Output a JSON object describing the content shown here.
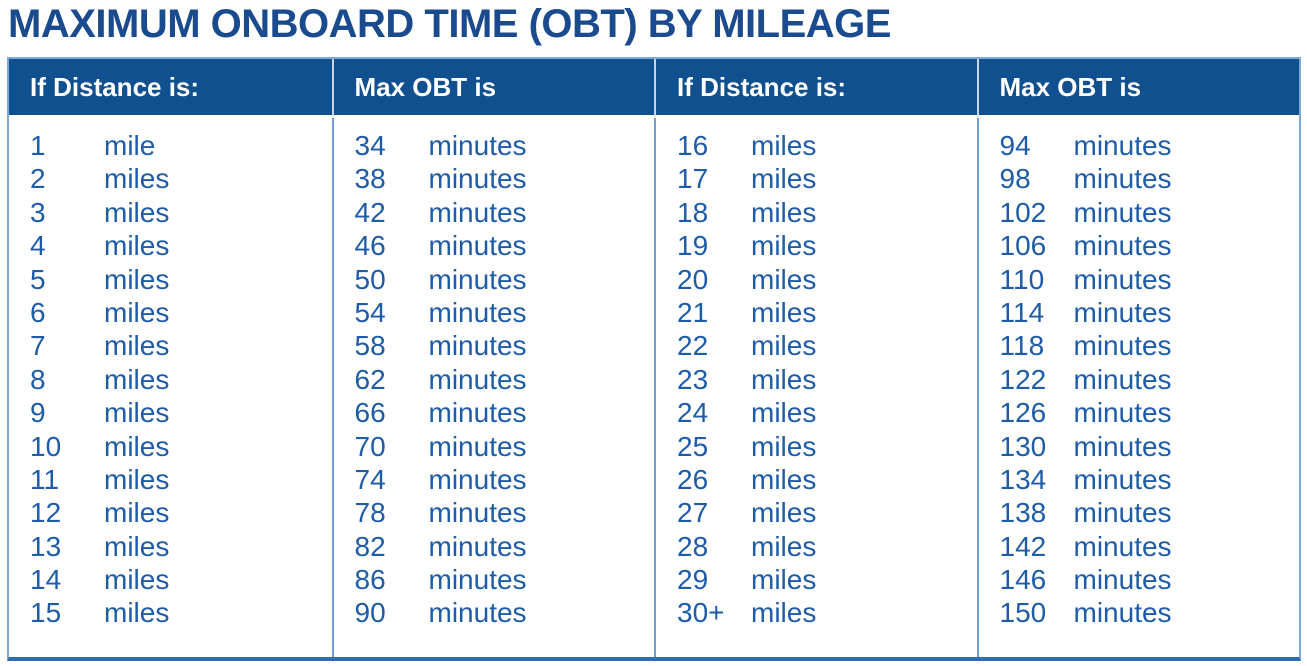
{
  "page": {
    "title": "MAXIMUM ONBOARD TIME (OBT) BY MILEAGE"
  },
  "colors": {
    "title_text": "#1a4b8e",
    "header_background": "#11508f",
    "header_text": "#ffffff",
    "body_text": "#1e5ca8",
    "grid_line_light": "#7fa8d4",
    "grid_line_bottom": "#2f6db2"
  },
  "table": {
    "columns": [
      {
        "header": "If Distance is:",
        "rows": [
          {
            "value": "1",
            "unit": "mile"
          },
          {
            "value": "2",
            "unit": "miles"
          },
          {
            "value": "3",
            "unit": "miles"
          },
          {
            "value": "4",
            "unit": "miles"
          },
          {
            "value": "5",
            "unit": "miles"
          },
          {
            "value": "6",
            "unit": "miles"
          },
          {
            "value": "7",
            "unit": "miles"
          },
          {
            "value": "8",
            "unit": "miles"
          },
          {
            "value": "9",
            "unit": "miles"
          },
          {
            "value": "10",
            "unit": "miles"
          },
          {
            "value": "11",
            "unit": "miles"
          },
          {
            "value": "12",
            "unit": "miles"
          },
          {
            "value": "13",
            "unit": "miles"
          },
          {
            "value": "14",
            "unit": "miles"
          },
          {
            "value": "15",
            "unit": "miles"
          }
        ]
      },
      {
        "header": "Max OBT is",
        "rows": [
          {
            "value": "34",
            "unit": "minutes"
          },
          {
            "value": "38",
            "unit": "minutes"
          },
          {
            "value": "42",
            "unit": "minutes"
          },
          {
            "value": "46",
            "unit": "minutes"
          },
          {
            "value": "50",
            "unit": "minutes"
          },
          {
            "value": "54",
            "unit": "minutes"
          },
          {
            "value": "58",
            "unit": "minutes"
          },
          {
            "value": "62",
            "unit": "minutes"
          },
          {
            "value": "66",
            "unit": "minutes"
          },
          {
            "value": "70",
            "unit": "minutes"
          },
          {
            "value": "74",
            "unit": "minutes"
          },
          {
            "value": "78",
            "unit": "minutes"
          },
          {
            "value": "82",
            "unit": "minutes"
          },
          {
            "value": "86",
            "unit": "minutes"
          },
          {
            "value": "90",
            "unit": "minutes"
          }
        ]
      },
      {
        "header": "If Distance is:",
        "rows": [
          {
            "value": "16",
            "unit": "miles"
          },
          {
            "value": "17",
            "unit": "miles"
          },
          {
            "value": "18",
            "unit": "miles"
          },
          {
            "value": "19",
            "unit": "miles"
          },
          {
            "value": "20",
            "unit": "miles"
          },
          {
            "value": "21",
            "unit": "miles"
          },
          {
            "value": "22",
            "unit": "miles"
          },
          {
            "value": "23",
            "unit": "miles"
          },
          {
            "value": "24",
            "unit": "miles"
          },
          {
            "value": "25",
            "unit": "miles"
          },
          {
            "value": "26",
            "unit": "miles"
          },
          {
            "value": "27",
            "unit": "miles"
          },
          {
            "value": "28",
            "unit": "miles"
          },
          {
            "value": "29",
            "unit": "miles"
          },
          {
            "value": "30+",
            "unit": "miles"
          }
        ]
      },
      {
        "header": "Max OBT is",
        "rows": [
          {
            "value": "94",
            "unit": "minutes"
          },
          {
            "value": "98",
            "unit": "minutes"
          },
          {
            "value": "102",
            "unit": "minutes"
          },
          {
            "value": "106",
            "unit": "minutes"
          },
          {
            "value": "110",
            "unit": "minutes"
          },
          {
            "value": "114",
            "unit": "minutes"
          },
          {
            "value": "118",
            "unit": "minutes"
          },
          {
            "value": "122",
            "unit": "minutes"
          },
          {
            "value": "126",
            "unit": "minutes"
          },
          {
            "value": "130",
            "unit": "minutes"
          },
          {
            "value": "134",
            "unit": "minutes"
          },
          {
            "value": "138",
            "unit": "minutes"
          },
          {
            "value": "142",
            "unit": "minutes"
          },
          {
            "value": "146",
            "unit": "minutes"
          },
          {
            "value": "150",
            "unit": "minutes"
          }
        ]
      }
    ]
  }
}
